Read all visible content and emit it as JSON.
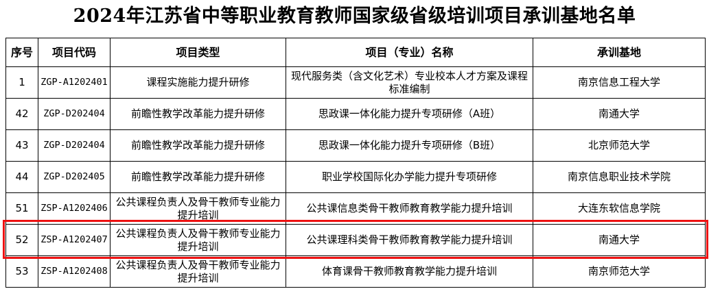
{
  "title": "2024年江苏省中等职业教育教师国家级省级培训项目承训基地名单",
  "headers": [
    "序号",
    "项目代码",
    "项目类型",
    "项目（专业）名称",
    "承训基地"
  ],
  "rows": [
    [
      "1",
      "ZGP-A1202401",
      "课程实施能力提升研修",
      "现代服务类（含文化艺术）专业校本人才方案及课程标准编制",
      "南京信息工程大学"
    ],
    [
      "42",
      "ZGP-D202404",
      "前瞻性教学改革能力提升研修",
      "思政课一体化能力提升专项研修（A班）",
      "南通大学"
    ],
    [
      "43",
      "ZGP-D202404",
      "前瞻性教学改革能力提升研修",
      "思政课一体化能力提升专项研修（B班）",
      "北京师范大学"
    ],
    [
      "44",
      "ZGP-D202405",
      "前瞻性教学改革能力提升研修",
      "职业学校国际化办学能力提升专项研修",
      "南京信息职业技术学院"
    ],
    [
      "51",
      "ZSP-A1202406",
      "公共课程负责人及骨干教师专业能力提升培训",
      "公共课信息类骨干教师教育教学能力提升培训",
      "大连东软信息学院"
    ],
    [
      "52",
      "ZSP-A1202407",
      "公共课程负责人及骨干教师专业能力提升培训",
      "公共课理科类骨干教师教育教学能力提升培训",
      "南通大学"
    ],
    [
      "53",
      "ZSP-A1202408",
      "公共课程负责人及骨干教师专业能力提升培训",
      "体育课骨干教师教育教学能力提升培训",
      "南京师范大学"
    ]
  ],
  "highlight_color": "#ee1111",
  "highlighted_row": "52"
}
